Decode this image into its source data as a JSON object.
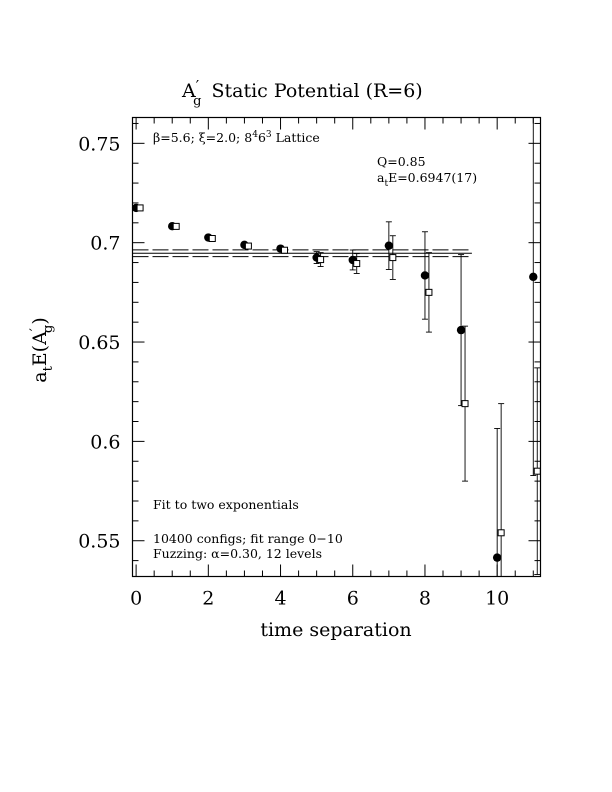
{
  "chart_data": {
    "type": "scatter",
    "title_main": "A",
    "title_prime": "′",
    "title_sub": "g",
    "title_rest": "Static Potential (R=6)",
    "xlabel": "time separation",
    "ylabel_text": "a",
    "ylabel_sub_t": "t",
    "ylabel_mid": "E(A",
    "ylabel_prime": "′",
    "ylabel_sub_g": "g",
    "ylabel_end": ")",
    "xlim": [
      -0.1,
      11.2
    ],
    "ylim": [
      0.532,
      0.763
    ],
    "x_ticks": [
      0,
      2,
      4,
      6,
      8,
      10
    ],
    "x_tick_labels": [
      "0",
      "2",
      "4",
      "6",
      "8",
      "10"
    ],
    "y_ticks": [
      0.55,
      0.6,
      0.65,
      0.7,
      0.75
    ],
    "y_tick_labels": [
      "0.55",
      "0.6",
      "0.65",
      "0.7",
      "0.75"
    ],
    "annotations": {
      "lattice_beta": "β=5.6;",
      "lattice_xi": "ξ=2.0;",
      "lattice_size": "8",
      "lattice_exp": "4",
      "lattice_size2": "6",
      "lattice_exp2": "3",
      "lattice_word": "Lattice",
      "q_value": "Q=0.85",
      "fit_a": "a",
      "fit_t": "t",
      "fit_rest": "E=0.6947(17)",
      "fit_method": "Fit to two exponentials",
      "configs": "10400 configs; fit range 0−10",
      "fuzzing_a": "Fuzzing: ",
      "fuzzing_alpha": "α",
      "fuzzing_b": "=0.30, 12 levels"
    },
    "fit": {
      "value": 0.6947,
      "error": 0.0017,
      "x_range": [
        -0.1,
        9.3
      ]
    },
    "series": [
      {
        "marker": "filled-circle",
        "points": [
          {
            "x": 0,
            "y": 0.7175,
            "err": 0.0004
          },
          {
            "x": 1,
            "y": 0.7083,
            "err": 0.0005
          },
          {
            "x": 2,
            "y": 0.7026,
            "err": 0.0006
          },
          {
            "x": 3,
            "y": 0.6989,
            "err": 0.0007
          },
          {
            "x": 4,
            "y": 0.697,
            "err": 0.001
          },
          {
            "x": 5,
            "y": 0.6925,
            "err": 0.003
          },
          {
            "x": 6,
            "y": 0.6913,
            "err": 0.005
          },
          {
            "x": 7,
            "y": 0.6985,
            "err": 0.012
          },
          {
            "x": 8,
            "y": 0.6835,
            "err": 0.022
          },
          {
            "x": 9,
            "y": 0.656,
            "err": 0.038
          },
          {
            "x": 10,
            "y": 0.5415,
            "err": 0.065
          },
          {
            "x": 11,
            "y": 0.6828,
            "err": 0.1
          }
        ]
      },
      {
        "marker": "open-square",
        "points": [
          {
            "x": 0,
            "y": 0.7175,
            "err": 0.0004
          },
          {
            "x": 1,
            "y": 0.7082,
            "err": 0.0005
          },
          {
            "x": 2,
            "y": 0.7021,
            "err": 0.0006
          },
          {
            "x": 3,
            "y": 0.6983,
            "err": 0.0008
          },
          {
            "x": 4,
            "y": 0.6962,
            "err": 0.0012
          },
          {
            "x": 5,
            "y": 0.6915,
            "err": 0.0035
          },
          {
            "x": 6,
            "y": 0.6895,
            "err": 0.005
          },
          {
            "x": 7,
            "y": 0.6925,
            "err": 0.011
          },
          {
            "x": 8,
            "y": 0.675,
            "err": 0.02
          },
          {
            "x": 9,
            "y": 0.619,
            "err": 0.039
          },
          {
            "x": 10,
            "y": 0.554,
            "err": 0.065
          },
          {
            "x": 11,
            "y": 0.585,
            "err": 0.052
          }
        ]
      }
    ]
  }
}
